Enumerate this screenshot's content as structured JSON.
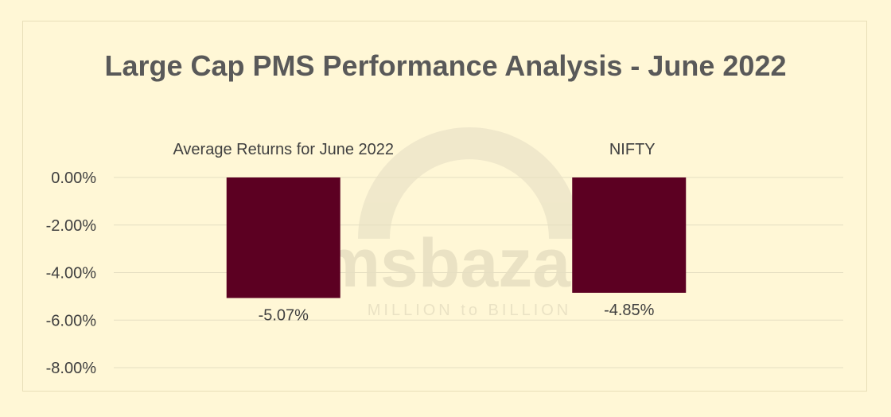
{
  "chart_data": {
    "type": "bar",
    "title": "Large Cap PMS Performance Analysis - June 2022",
    "categories": [
      "Average Returns for June 2022",
      "NIFTY"
    ],
    "values": [
      -5.07,
      -4.85
    ],
    "data_labels": [
      "-5.07%",
      "-4.85%"
    ],
    "ylim": [
      -8,
      0
    ],
    "yticks": [
      0,
      -2,
      -4,
      -6,
      -8
    ],
    "ytick_labels": [
      "0.00%",
      "-2.00%",
      "-4.00%",
      "-6.00%",
      "-8.00%"
    ],
    "category_axis_position": "top",
    "grid": true,
    "legend": "none",
    "bar_color": "#5c0022",
    "gridline_color": "#e6dfc2",
    "background_color": "#fff7d6"
  },
  "watermark": {
    "text": "msbazaar",
    "tagline": "MILLION to BILLION"
  }
}
